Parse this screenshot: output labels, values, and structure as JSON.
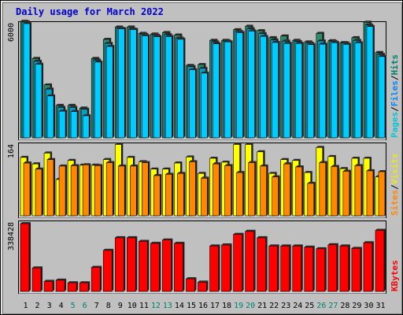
{
  "chart_data": {
    "type": "bar",
    "title": "Daily usage for March 2022",
    "categories": [
      "1",
      "2",
      "3",
      "4",
      "5",
      "6",
      "7",
      "8",
      "9",
      "10",
      "11",
      "12",
      "13",
      "14",
      "15",
      "16",
      "17",
      "18",
      "19",
      "20",
      "21",
      "22",
      "23",
      "24",
      "25",
      "26",
      "27",
      "28",
      "29",
      "30",
      "31"
    ],
    "weekend_days": [
      "5",
      "6",
      "12",
      "13",
      "19",
      "20",
      "26",
      "27"
    ],
    "panels": [
      {
        "id": "top",
        "ymax_label": "6000",
        "ymax": 6000,
        "right_labels": [
          {
            "text": "Pages",
            "color": "#00c8d8"
          },
          {
            "text": "/",
            "color": "#000000"
          },
          {
            "text": "Files",
            "color": "#0088ff"
          },
          {
            "text": "/",
            "color": "#000000"
          },
          {
            "text": "Hits",
            "color": "#00806a"
          }
        ],
        "series": [
          {
            "key": "hits",
            "color": "#2e8b6e",
            "values": [
              6120,
              4170,
              2780,
              1700,
              1700,
              1560,
              4170,
              5170,
              5820,
              5820,
              5490,
              5450,
              5530,
              5400,
              3800,
              3850,
              5120,
              5120,
              5680,
              5860,
              5630,
              5260,
              5350,
              5120,
              5040,
              5490,
              5100,
              5000,
              5260,
              6070,
              4480
            ]
          },
          {
            "key": "files",
            "color": "#00a0c8",
            "values": [
              6080,
              4020,
              2560,
              1600,
              1600,
              1500,
              4080,
              4960,
              5750,
              5710,
              5430,
              5380,
              5420,
              5240,
              3740,
              3650,
              5030,
              5080,
              5590,
              5730,
              5480,
              5140,
              5080,
              5050,
              4970,
              5090,
              5060,
              4980,
              5120,
              5930,
              4380
            ]
          },
          {
            "key": "pages",
            "color": "#00ccff",
            "values": [
              6000,
              3870,
              2200,
              1400,
              1380,
              1160,
              3980,
              4800,
              5730,
              5690,
              5360,
              5310,
              5320,
              5180,
              3580,
              3400,
              4940,
              5040,
              5530,
              5610,
              5330,
              5010,
              4960,
              4960,
              4900,
              4920,
              5000,
              4910,
              4990,
              5850,
              4270
            ]
          }
        ]
      },
      {
        "id": "middle",
        "ymax_label": "164",
        "ymax": 164,
        "right_labels": [
          {
            "text": "Sites",
            "color": "#ff8800"
          },
          {
            "text": "/",
            "color": "#000000"
          },
          {
            "text": "Visits",
            "color": "#e8e820"
          }
        ],
        "series": [
          {
            "key": "visits",
            "color": "#ffff00",
            "values": [
              135,
              120,
              145,
              84,
              128,
              117,
              117,
              130,
              165,
              135,
              125,
              108,
              108,
              122,
              136,
              98,
              133,
              124,
              165,
              165,
              148,
              98,
              130,
              128,
              100,
              158,
              137,
              109,
              133,
              133,
              90
            ]
          },
          {
            "key": "sites",
            "color": "#ff8800",
            "values": [
              122,
              108,
              130,
              115,
              116,
              118,
              116,
              123,
              115,
              115,
              123,
              93,
              96,
              98,
              125,
              87,
              120,
              116,
              100,
              123,
              115,
              90,
              120,
              113,
              75,
              123,
              114,
              103,
              116,
              104,
              102
            ]
          }
        ]
      },
      {
        "id": "bottom",
        "ymax_label": "338428",
        "ymax": 338428,
        "right_labels": [
          {
            "text": "KBytes",
            "color": "#ff0000"
          }
        ],
        "series": [
          {
            "key": "kbytes",
            "color": "#ff0000",
            "values": [
              338428,
              117000,
              50000,
              56000,
              43000,
              43000,
              120000,
              205000,
              268000,
              268000,
              250000,
              240000,
              257000,
              240000,
              63000,
              46000,
              227000,
              232000,
              285000,
              300000,
              268000,
              227000,
              227000,
              227000,
              221000,
              213000,
              233000,
              227000,
              215000,
              243000,
              305000
            ]
          }
        ]
      }
    ]
  }
}
